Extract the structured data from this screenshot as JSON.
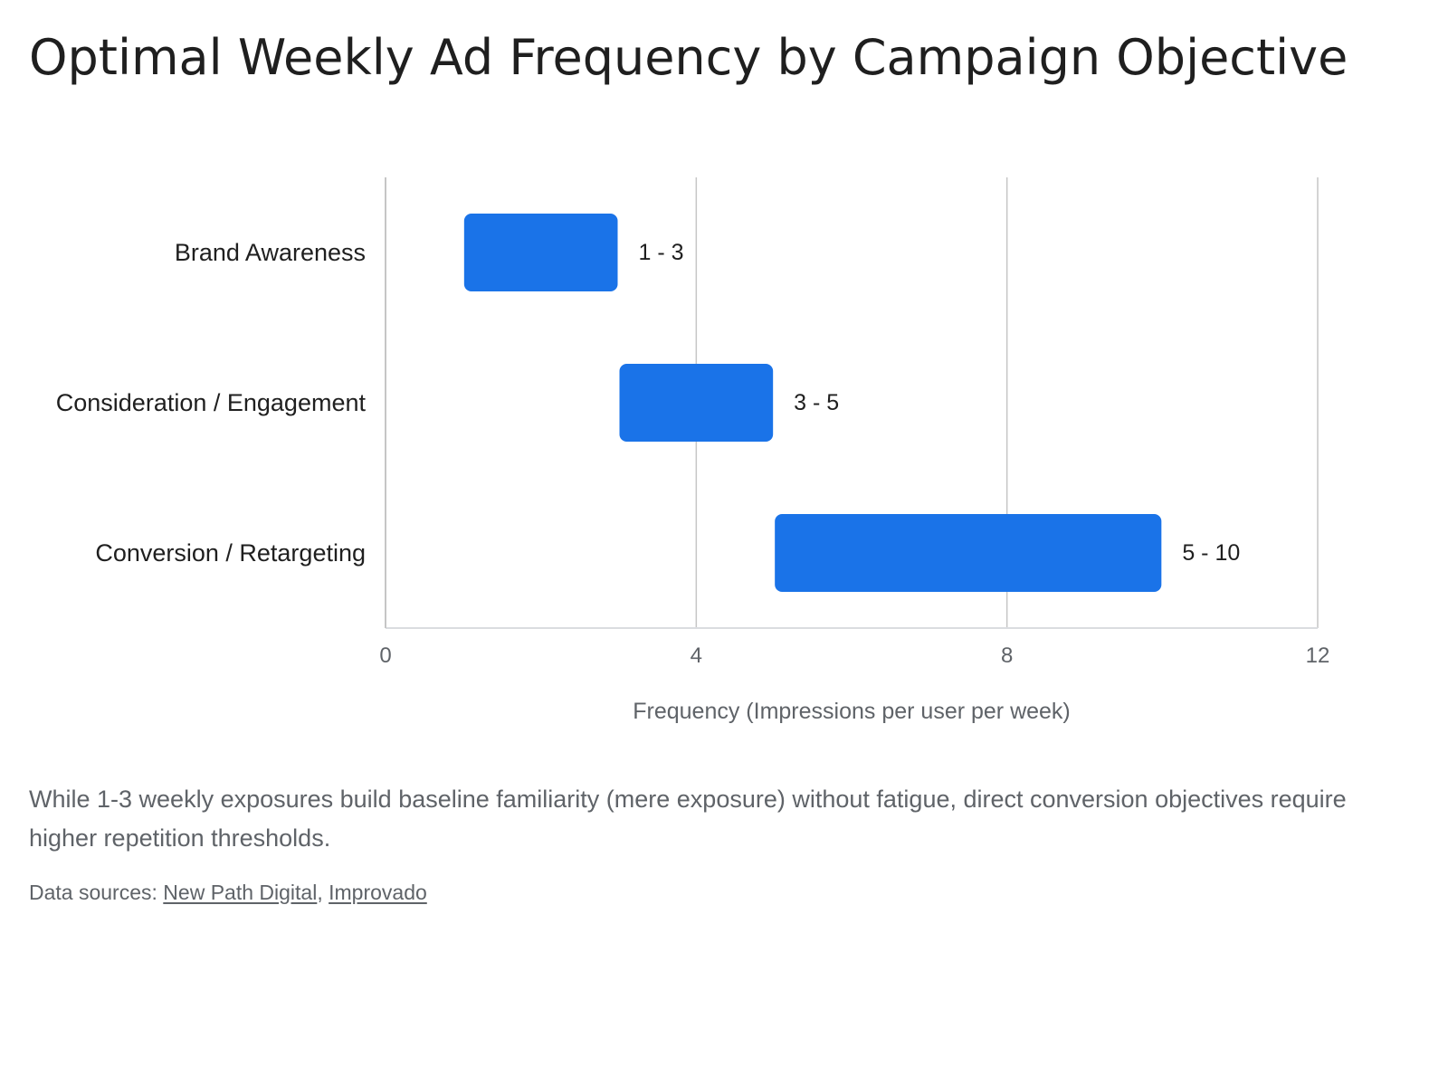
{
  "page": {
    "title": "Optimal Weekly Ad Frequency by Campaign Objective",
    "caption": "While 1-3 weekly exposures build baseline familiarity (mere exposure) without fatigue, direct conversion objectives require higher repetition thresholds.",
    "sources_prefix": "Data sources: ",
    "sources_separator": ", ",
    "sources": [
      {
        "label": "New Path Digital"
      },
      {
        "label": "Improvado"
      }
    ]
  },
  "chart_data": {
    "type": "bar",
    "orientation": "horizontal",
    "subtype": "floating-range",
    "categories": [
      "Brand Awareness",
      "Consideration / Engagement",
      "Conversion / Retargeting"
    ],
    "ranges": [
      [
        1,
        3
      ],
      [
        3,
        5
      ],
      [
        5,
        10
      ]
    ],
    "data_labels": [
      "1 - 3",
      "3 - 5",
      "5 - 10"
    ],
    "xlabel": "Frequency (Impressions per user per week)",
    "ylabel": "",
    "xlim": [
      0,
      12
    ],
    "xticks": [
      0,
      4,
      8,
      12
    ],
    "grid": true,
    "legend": "none",
    "colors": {
      "bar": "#1a73e8",
      "grid": "#c6c6c6",
      "axis": "#dadce0",
      "label": "#1f1f1f",
      "tick": "#5f6368"
    }
  }
}
